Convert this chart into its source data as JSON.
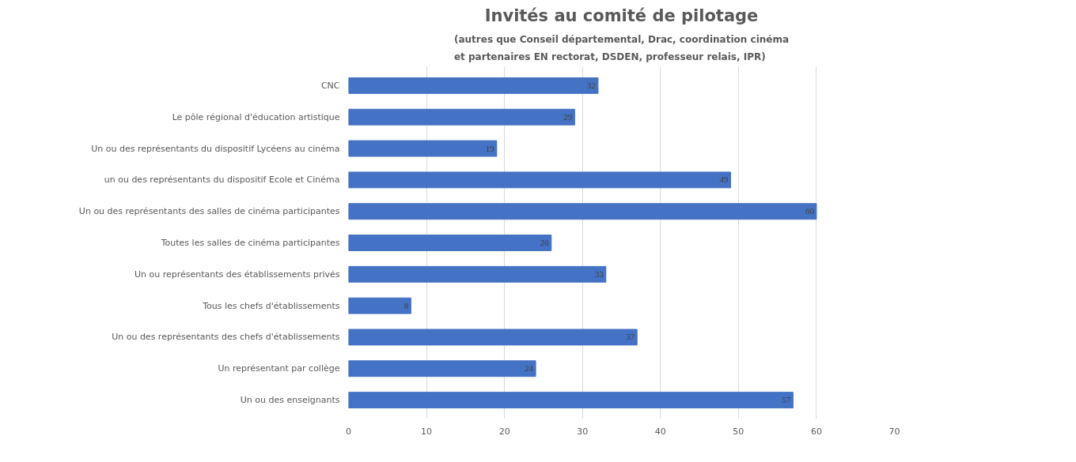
{
  "chart_data": {
    "type": "bar",
    "orientation": "horizontal",
    "title": "Invités au comité de pilotage",
    "subtitle": "(autres que Conseil départemental, Drac, coordination cinéma\net partenaires EN rectorat, DSDEN, professeur relais, IPR)",
    "categories": [
      "CNC",
      "Le pôle régional d'éducation artistique",
      "Un ou des représentants du dispositif Lycéens au cinéma",
      "un ou des représentants du dispositif Ecole et Cinéma",
      "Un ou des représentants des salles de cinéma participantes",
      "Toutes les salles de cinéma participantes",
      "Un ou représentants des établissements privés",
      "Tous les chefs d'établissements",
      "Un ou des représentants des chefs d'établissements",
      "Un représentant par collège",
      "Un ou des enseignants"
    ],
    "values": [
      32,
      29,
      19,
      49,
      60,
      26,
      33,
      8,
      37,
      24,
      57
    ],
    "color": "#4472c4",
    "xlim": [
      0,
      70
    ],
    "xticks": [
      0,
      10,
      20,
      30,
      40,
      50,
      60,
      70
    ],
    "grid": "x",
    "data_labels": true
  }
}
